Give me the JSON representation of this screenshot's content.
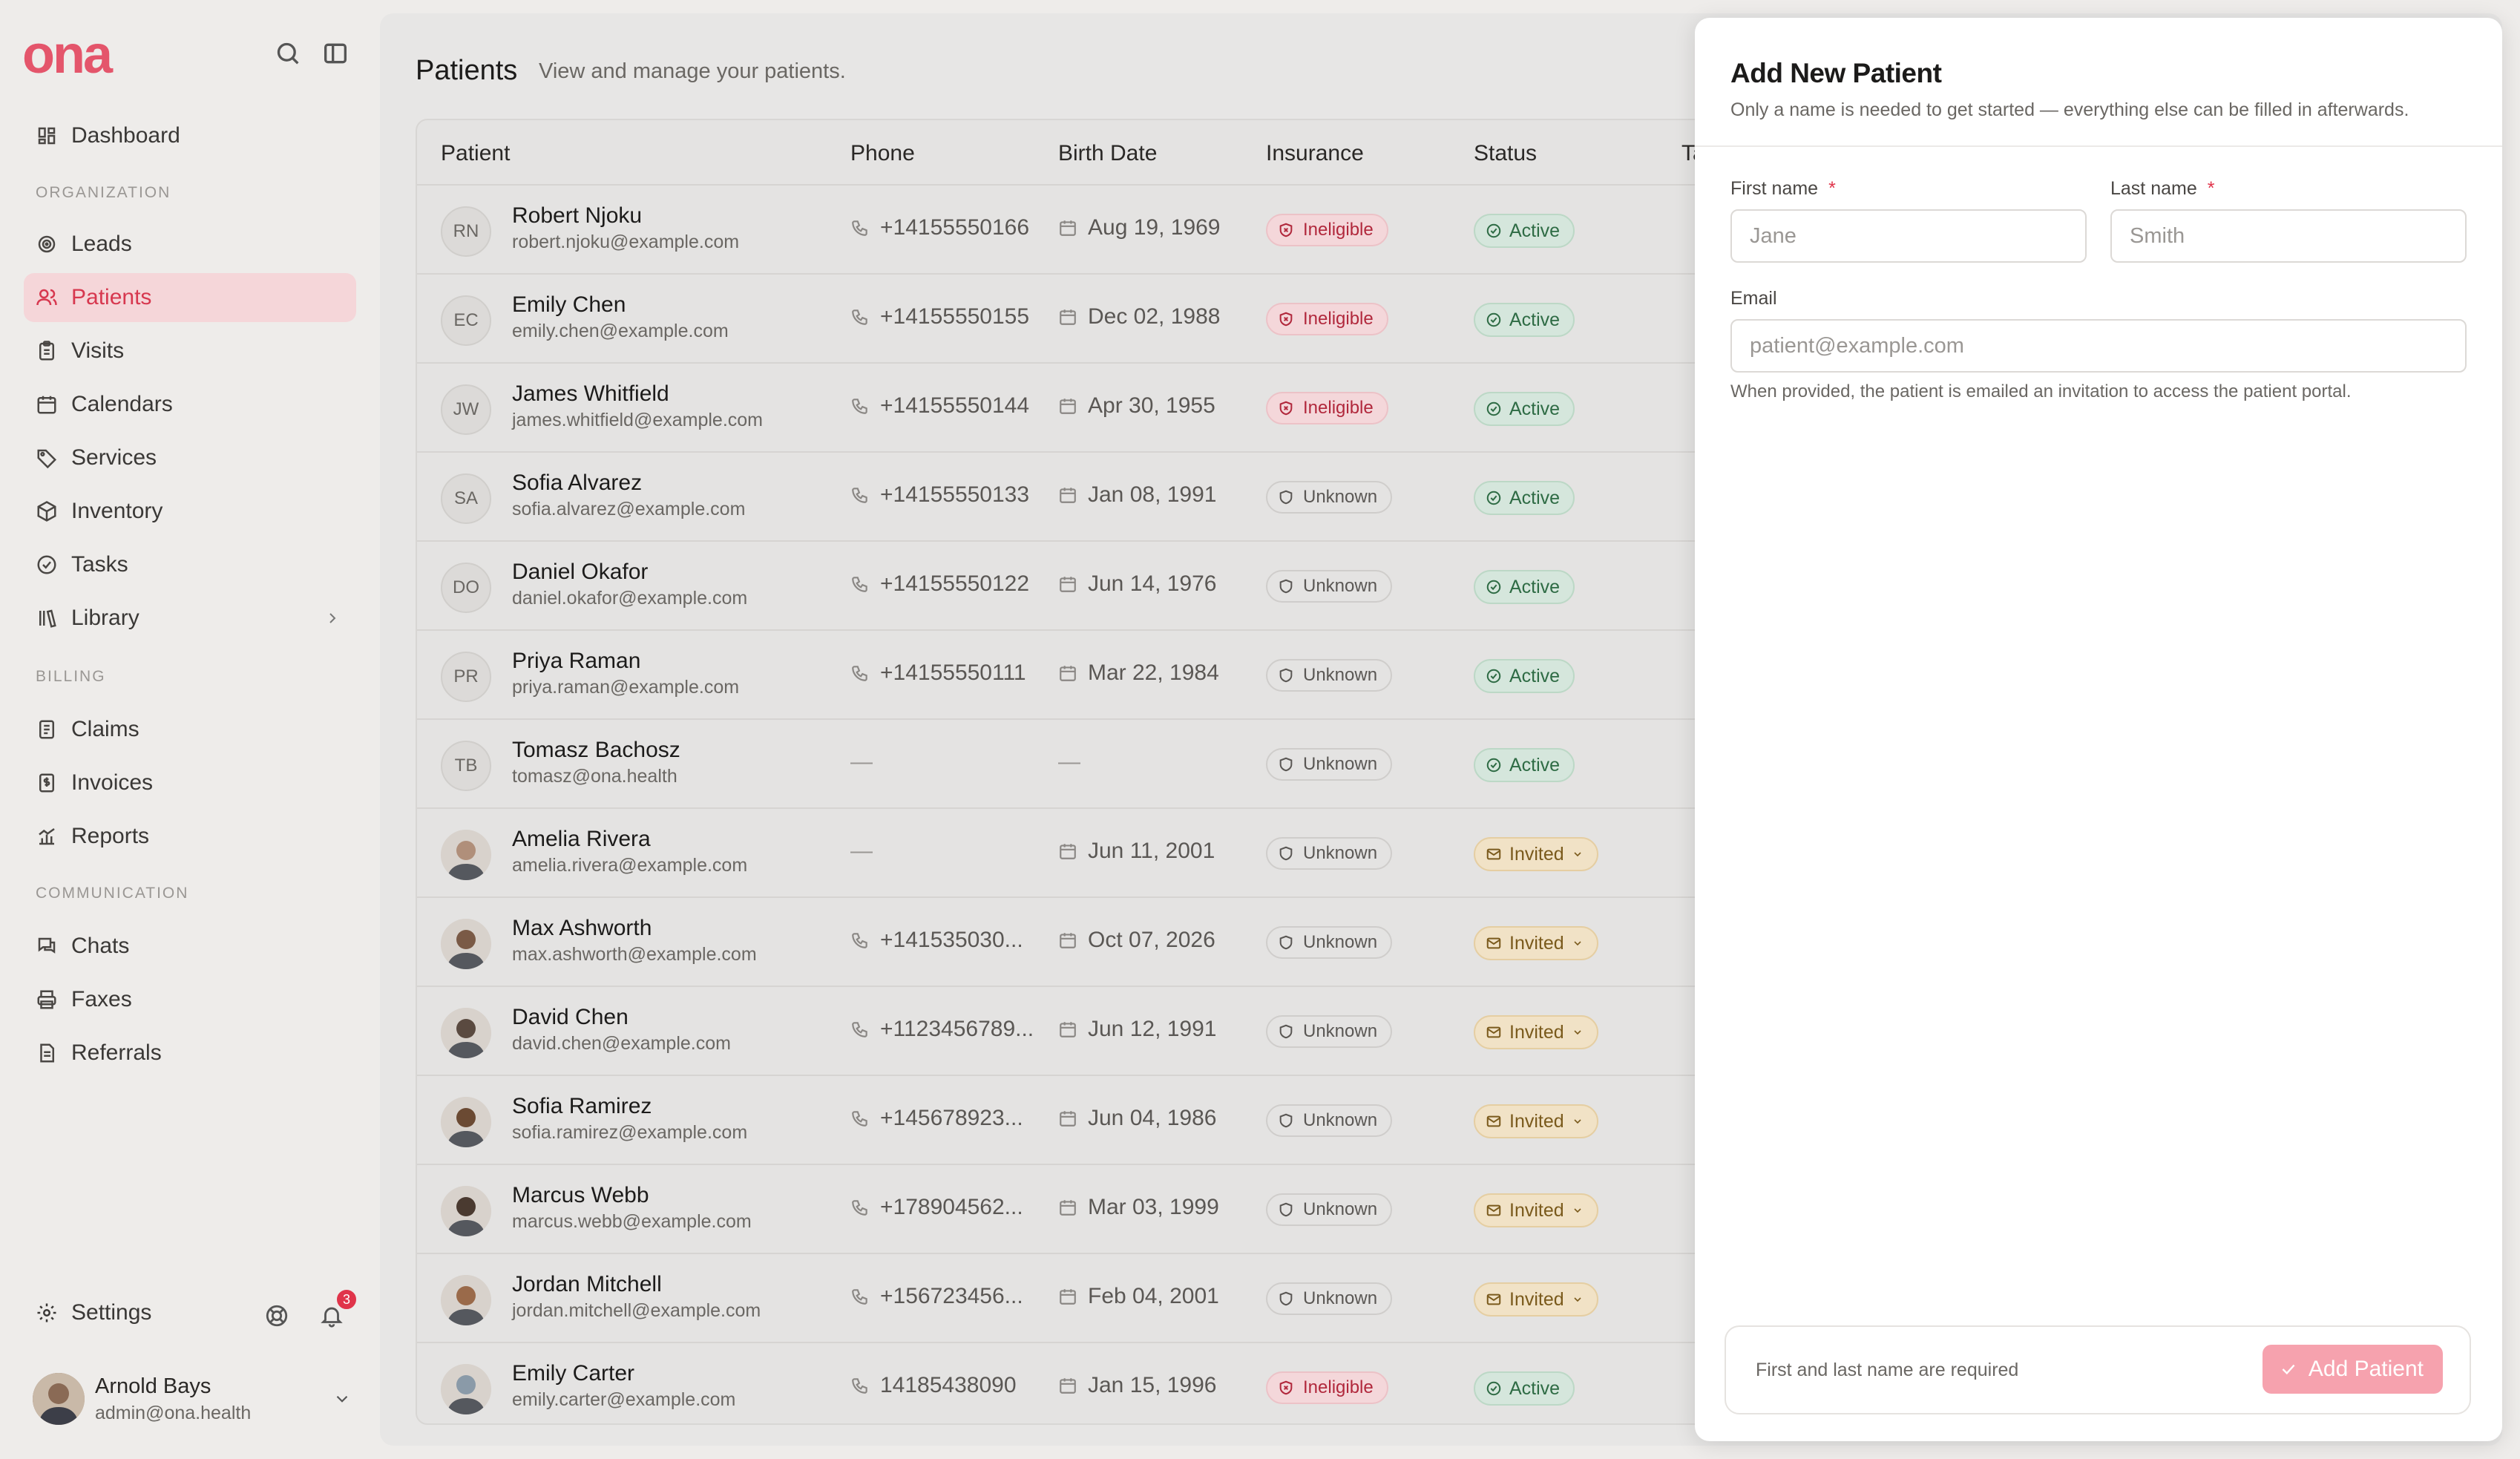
{
  "app": {
    "logo": "ona"
  },
  "sidebar": {
    "items_top": [
      {
        "label": "Dashboard",
        "icon": "dashboard-icon"
      }
    ],
    "section_org": "ORGANIZATION",
    "items_org": [
      {
        "label": "Leads",
        "icon": "target-icon"
      },
      {
        "label": "Patients",
        "icon": "users-icon",
        "active": true
      },
      {
        "label": "Visits",
        "icon": "clipboard-icon"
      },
      {
        "label": "Calendars",
        "icon": "calendar-icon"
      },
      {
        "label": "Services",
        "icon": "tag-icon"
      },
      {
        "label": "Inventory",
        "icon": "box-icon"
      },
      {
        "label": "Tasks",
        "icon": "check-circle-icon"
      },
      {
        "label": "Library",
        "icon": "library-icon"
      }
    ],
    "section_billing": "BILLING",
    "items_billing": [
      {
        "label": "Claims",
        "icon": "document-icon"
      },
      {
        "label": "Invoices",
        "icon": "invoice-icon"
      },
      {
        "label": "Reports",
        "icon": "chart-icon"
      }
    ],
    "section_comm": "COMMUNICATION",
    "items_comm": [
      {
        "label": "Chats",
        "icon": "chat-icon"
      },
      {
        "label": "Faxes",
        "icon": "printer-icon"
      },
      {
        "label": "Referrals",
        "icon": "file-icon"
      }
    ],
    "settings_label": "Settings",
    "notification_count": "3",
    "user": {
      "name": "Arnold Bays",
      "email": "admin@ona.health"
    }
  },
  "page": {
    "title": "Patients",
    "subtitle": "View and manage your patients."
  },
  "table": {
    "columns": [
      "Patient",
      "Phone",
      "Birth Date",
      "Insurance",
      "Status",
      "Ta"
    ],
    "rows": [
      {
        "initials": "RN",
        "name": "Robert Njoku",
        "email": "robert.njoku@example.com",
        "phone": "+14155550166",
        "birth": "Aug 19, 1969",
        "insurance": "Ineligible",
        "status": "Active"
      },
      {
        "initials": "EC",
        "name": "Emily Chen",
        "email": "emily.chen@example.com",
        "phone": "+14155550155",
        "birth": "Dec 02, 1988",
        "insurance": "Ineligible",
        "status": "Active"
      },
      {
        "initials": "JW",
        "name": "James Whitfield",
        "email": "james.whitfield@example.com",
        "phone": "+14155550144",
        "birth": "Apr 30, 1955",
        "insurance": "Ineligible",
        "status": "Active"
      },
      {
        "initials": "SA",
        "name": "Sofia Alvarez",
        "email": "sofia.alvarez@example.com",
        "phone": "+14155550133",
        "birth": "Jan 08, 1991",
        "insurance": "Unknown",
        "status": "Active"
      },
      {
        "initials": "DO",
        "name": "Daniel Okafor",
        "email": "daniel.okafor@example.com",
        "phone": "+14155550122",
        "birth": "Jun 14, 1976",
        "insurance": "Unknown",
        "status": "Active"
      },
      {
        "initials": "PR",
        "name": "Priya Raman",
        "email": "priya.raman@example.com",
        "phone": "+14155550111",
        "birth": "Mar 22, 1984",
        "insurance": "Unknown",
        "status": "Active"
      },
      {
        "initials": "TB",
        "name": "Tomasz Bachosz",
        "email": "tomasz@ona.health",
        "phone": "—",
        "birth": "—",
        "insurance": "Unknown",
        "status": "Active"
      },
      {
        "initials": "",
        "photo": "#b08f7a",
        "name": "Amelia Rivera",
        "email": "amelia.rivera@example.com",
        "phone": "—",
        "birth": "Jun 11, 2001",
        "insurance": "Unknown",
        "status": "Invited"
      },
      {
        "initials": "",
        "photo": "#7a5a46",
        "name": "Max Ashworth",
        "email": "max.ashworth@example.com",
        "phone": "+141535030...",
        "birth": "Oct 07, 2026",
        "insurance": "Unknown",
        "status": "Invited"
      },
      {
        "initials": "",
        "photo": "#5a4a40",
        "name": "David Chen",
        "email": "david.chen@example.com",
        "phone": "+1123456789...",
        "birth": "Jun 12, 1991",
        "insurance": "Unknown",
        "status": "Invited"
      },
      {
        "initials": "",
        "photo": "#6b4a33",
        "name": "Sofia Ramirez",
        "email": "sofia.ramirez@example.com",
        "phone": "+145678923...",
        "birth": "Jun 04, 1986",
        "insurance": "Unknown",
        "status": "Invited"
      },
      {
        "initials": "",
        "photo": "#4a3a30",
        "name": "Marcus Webb",
        "email": "marcus.webb@example.com",
        "phone": "+178904562...",
        "birth": "Mar 03, 1999",
        "insurance": "Unknown",
        "status": "Invited"
      },
      {
        "initials": "",
        "photo": "#9a6a4a",
        "name": "Jordan Mitchell",
        "email": "jordan.mitchell@example.com",
        "phone": "+156723456...",
        "birth": "Feb 04, 2001",
        "insurance": "Unknown",
        "status": "Invited"
      },
      {
        "initials": "",
        "photo": "#8a9aa8",
        "name": "Emily Carter",
        "email": "emily.carter@example.com",
        "phone": "14185438090",
        "birth": "Jan 15, 1996",
        "insurance": "Ineligible",
        "status": "Active"
      }
    ]
  },
  "dialog": {
    "title": "Add New Patient",
    "subtitle": "Only a name is needed to get started — everything else can be filled in afterwards.",
    "first_name_label": "First name",
    "last_name_label": "Last name",
    "required_mark": "*",
    "first_name_placeholder": "Jane",
    "last_name_placeholder": "Smith",
    "email_label": "Email",
    "email_placeholder": "patient@example.com",
    "email_help": "When provided, the patient is emailed an invitation to access the patient portal.",
    "footer_note": "First and last name are required",
    "submit_label": "Add Patient"
  },
  "colors": {
    "brand": "#e4556b",
    "active_nav_bg": "#f5d6d9",
    "ineligible": "#b1283c",
    "active_status": "#2e6b44",
    "invited_status": "#7a5a1c",
    "submit_disabled": "#f6a2ae"
  }
}
